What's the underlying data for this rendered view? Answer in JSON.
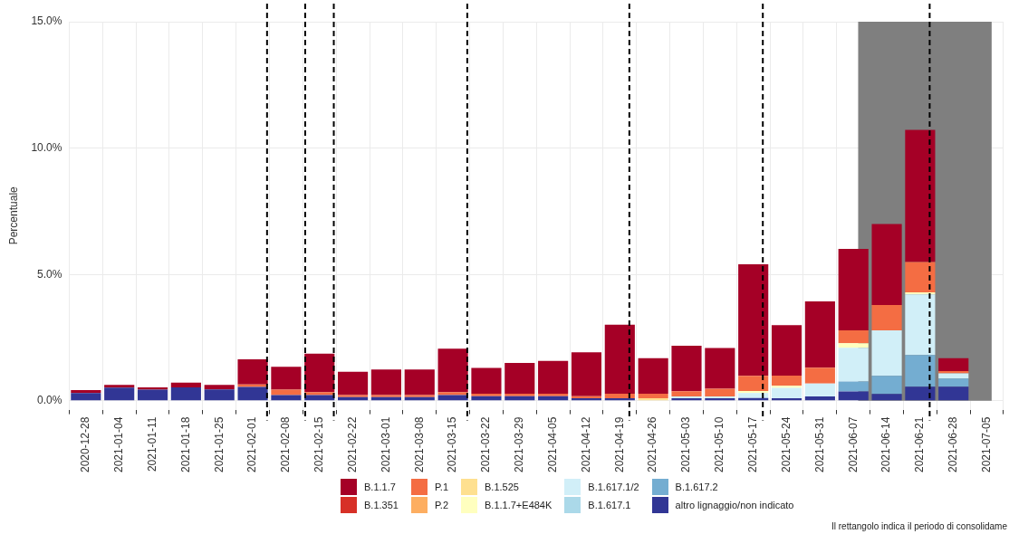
{
  "chart_data": {
    "type": "bar",
    "stacked": true,
    "ylabel": "Percentuale",
    "x": [
      "2020-12-28",
      "2021-01-04",
      "2021-01-11",
      "2021-01-18",
      "2021-01-25",
      "2021-02-01",
      "2021-02-08",
      "2021-02-15",
      "2021-02-22",
      "2021-03-01",
      "2021-03-08",
      "2021-03-15",
      "2021-03-22",
      "2021-03-29",
      "2021-04-05",
      "2021-04-12",
      "2021-04-19",
      "2021-04-26",
      "2021-05-03",
      "2021-05-10",
      "2021-05-17",
      "2021-05-24",
      "2021-05-31",
      "2021-06-07",
      "2021-06-14",
      "2021-06-21",
      "2021-06-28"
    ],
    "xlim": [
      "2020-12-28",
      "2021-07-05"
    ],
    "xticks": [
      "2020-12-28",
      "2021-01-04",
      "2021-01-11",
      "2021-01-18",
      "2021-01-25",
      "2021-02-01",
      "2021-02-08",
      "2021-02-15",
      "2021-02-22",
      "2021-03-01",
      "2021-03-08",
      "2021-03-15",
      "2021-03-22",
      "2021-03-29",
      "2021-04-05",
      "2021-04-12",
      "2021-04-19",
      "2021-04-26",
      "2021-05-03",
      "2021-05-10",
      "2021-05-17",
      "2021-05-24",
      "2021-05-31",
      "2021-06-07",
      "2021-06-14",
      "2021-06-21",
      "2021-06-28",
      "2021-07-05"
    ],
    "ylim": [
      -0.35,
      15
    ],
    "yticks": [
      {
        "value": 0,
        "label": "0.0%"
      },
      {
        "value": 5,
        "label": "5.0%"
      },
      {
        "value": 10,
        "label": "10.0%"
      },
      {
        "value": 15,
        "label": "15.0%"
      }
    ],
    "grid": true,
    "legend": "bottom",
    "series": [
      {
        "name": "altro lignaggio/non indicato",
        "color": "#313695",
        "values": [
          0.31,
          0.52,
          0.44,
          0.53,
          0.45,
          0.55,
          0.23,
          0.23,
          0.15,
          0.15,
          0.15,
          0.23,
          0.18,
          0.18,
          0.18,
          0.1,
          0.1,
          0,
          0.1,
          0.1,
          0.11,
          0.1,
          0.17,
          0.37,
          0.27,
          0.56,
          0.56
        ]
      },
      {
        "name": "B.1.617.2",
        "color": "#74add1",
        "values": [
          0,
          0,
          0,
          0,
          0,
          0,
          0,
          0,
          0,
          0,
          0,
          0,
          0,
          0,
          0,
          0,
          0,
          0,
          0,
          0,
          0,
          0,
          0,
          0.39,
          0.72,
          1.25,
          0.32
        ]
      },
      {
        "name": "B.1.617.1",
        "color": "#abd9e9",
        "values": [
          0,
          0,
          0,
          0,
          0,
          0,
          0,
          0,
          0,
          0,
          0,
          0,
          0,
          0,
          0,
          0,
          0,
          0,
          0,
          0,
          0,
          0,
          0,
          0,
          0,
          0,
          0
        ]
      },
      {
        "name": "B.1.617.1/2",
        "color": "#d1eff8",
        "values": [
          0,
          0,
          0,
          0,
          0,
          0,
          0,
          0,
          0,
          0,
          0,
          0,
          0,
          0,
          0,
          0,
          0,
          0,
          0.07,
          0.07,
          0.2,
          0.41,
          0.51,
          1.34,
          1.8,
          2.4,
          0.21
        ]
      },
      {
        "name": "B.1.1.7+E484K",
        "color": "#ffffbf",
        "values": [
          0,
          0,
          0,
          0,
          0,
          0,
          0,
          0,
          0,
          0,
          0,
          0,
          0,
          0,
          0,
          0,
          0,
          0,
          0,
          0,
          0.08,
          0.08,
          0,
          0.18,
          0,
          0.08,
          0
        ]
      },
      {
        "name": "B.1.525",
        "color": "#fee090",
        "values": [
          0,
          0,
          0,
          0,
          0,
          0,
          0,
          0,
          0,
          0,
          0,
          0,
          0,
          0,
          0,
          0,
          0,
          0.1,
          0,
          0,
          0,
          0,
          0,
          0,
          0,
          0,
          0
        ]
      },
      {
        "name": "P.2",
        "color": "#fdae61",
        "values": [
          0,
          0,
          0,
          0,
          0,
          0,
          0,
          0,
          0,
          0,
          0,
          0,
          0,
          0,
          0,
          0,
          0,
          0,
          0,
          0,
          0,
          0,
          0,
          0,
          0,
          0,
          0
        ]
      },
      {
        "name": "P.1",
        "color": "#f46d43",
        "values": [
          0,
          0,
          0,
          0,
          0,
          0.1,
          0.21,
          0.11,
          0.08,
          0.08,
          0.08,
          0.11,
          0.1,
          0.1,
          0.1,
          0.08,
          0.18,
          0.18,
          0.21,
          0.31,
          0.6,
          0.41,
          0.63,
          0.51,
          1.0,
          1.2,
          0.09
        ]
      },
      {
        "name": "B.1.351",
        "color": "#d73027",
        "values": [
          0,
          0,
          0,
          0,
          0,
          0,
          0,
          0,
          0,
          0,
          0,
          0,
          0,
          0,
          0,
          0,
          0,
          0,
          0,
          0,
          0,
          0,
          0,
          0,
          0,
          0,
          0
        ]
      },
      {
        "name": "B.1.1.7",
        "color": "#a50026",
        "values": [
          0.11,
          0.11,
          0.09,
          0.19,
          0.18,
          0.99,
          0.91,
          1.53,
          0.92,
          1.01,
          1.01,
          1.72,
          1.02,
          1.22,
          1.3,
          1.74,
          2.73,
          1.41,
          1.8,
          1.61,
          4.41,
          1.99,
          2.62,
          3.22,
          3.21,
          5.23,
          0.51
        ]
      }
    ],
    "ref_lines": [
      {
        "axis": "x",
        "value": "2021-02-04",
        "color": "#000000",
        "line_style": "dashed"
      },
      {
        "axis": "x",
        "value": "2021-02-12",
        "color": "#000000",
        "line_style": "dashed"
      },
      {
        "axis": "x",
        "value": "2021-02-18",
        "color": "#000000",
        "line_style": "dashed"
      },
      {
        "axis": "x",
        "value": "2021-03-18",
        "color": "#000000",
        "line_style": "dashed"
      },
      {
        "axis": "x",
        "value": "2021-04-21",
        "color": "#000000",
        "line_style": "dashed"
      },
      {
        "axis": "x",
        "value": "2021-05-19",
        "color": "#000000",
        "line_style": "dashed"
      },
      {
        "axis": "x",
        "value": "2021-06-23",
        "color": "#000000",
        "line_style": "dashed"
      }
    ],
    "bands": [
      {
        "axis": "x",
        "from": "2021-06-08",
        "to": "2021-07-06",
        "color": "#7f7f7f"
      }
    ],
    "annotations": [
      "Il rettangolo indica il periodo di consolidame"
    ]
  }
}
